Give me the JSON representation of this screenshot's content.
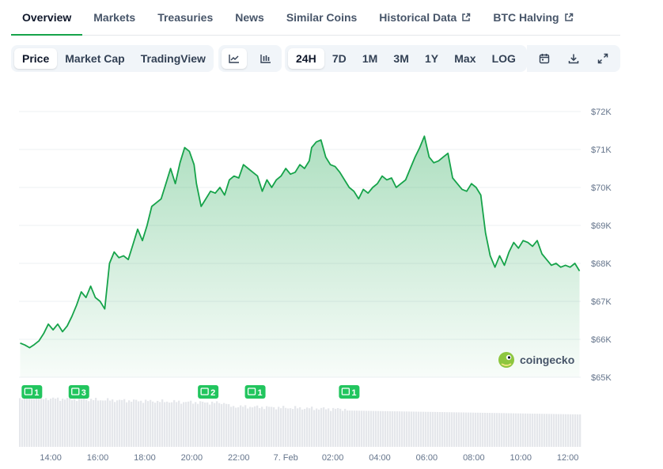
{
  "tabs": [
    {
      "label": "Overview",
      "active": true,
      "external": false
    },
    {
      "label": "Markets",
      "active": false,
      "external": false
    },
    {
      "label": "Treasuries",
      "active": false,
      "external": false
    },
    {
      "label": "News",
      "active": false,
      "external": false
    },
    {
      "label": "Similar Coins",
      "active": false,
      "external": false
    },
    {
      "label": "Historical Data",
      "active": false,
      "external": true
    },
    {
      "label": "BTC Halving",
      "active": false,
      "external": true
    }
  ],
  "toolbar": {
    "chart_types": [
      {
        "label": "Price",
        "active": true
      },
      {
        "label": "Market Cap",
        "active": false
      },
      {
        "label": "TradingView",
        "active": false
      }
    ],
    "view_icons": [
      {
        "icon": "line-chart-icon",
        "active": true
      },
      {
        "icon": "candlestick-chart-icon",
        "active": false
      }
    ],
    "ranges": [
      {
        "label": "24H",
        "active": true
      },
      {
        "label": "7D",
        "active": false
      },
      {
        "label": "1M",
        "active": false
      },
      {
        "label": "3M",
        "active": false
      },
      {
        "label": "1Y",
        "active": false
      },
      {
        "label": "Max",
        "active": false
      },
      {
        "label": "LOG",
        "active": false
      }
    ],
    "tool_icons": [
      "calendar-icon",
      "download-icon",
      "expand-icon"
    ]
  },
  "watermark": {
    "text": "coingecko"
  },
  "colors": {
    "accent": "#16a34a",
    "line": "#16a34a",
    "volume": "#e5e7eb",
    "marker": "#22c55e"
  },
  "chart_data": {
    "type": "area",
    "title": "",
    "xlabel": "",
    "ylabel": "",
    "grid": true,
    "ylim": [
      65000,
      72000
    ],
    "y_ticks": [
      {
        "value": 72000,
        "label": "$72K"
      },
      {
        "value": 71000,
        "label": "$71K"
      },
      {
        "value": 70000,
        "label": "$70K"
      },
      {
        "value": 69000,
        "label": "$69K"
      },
      {
        "value": 68000,
        "label": "$68K"
      },
      {
        "value": 67000,
        "label": "$67K"
      },
      {
        "value": 66000,
        "label": "$66K"
      },
      {
        "value": 65000,
        "label": "$65K"
      }
    ],
    "xlim": [
      12.65,
      36.55
    ],
    "x_ticks": [
      {
        "value": 14,
        "label": "14:00"
      },
      {
        "value": 16,
        "label": "16:00"
      },
      {
        "value": 18,
        "label": "18:00"
      },
      {
        "value": 20,
        "label": "20:00"
      },
      {
        "value": 22,
        "label": "22:00"
      },
      {
        "value": 24,
        "label": "7. Feb"
      },
      {
        "value": 26,
        "label": "02:00"
      },
      {
        "value": 28,
        "label": "04:00"
      },
      {
        "value": 30,
        "label": "06:00"
      },
      {
        "value": 32,
        "label": "08:00"
      },
      {
        "value": 34,
        "label": "10:00"
      },
      {
        "value": 36,
        "label": "12:00"
      }
    ],
    "series": [
      {
        "values": [
          [
            12.7,
            65900
          ],
          [
            12.9,
            65850
          ],
          [
            13.1,
            65780
          ],
          [
            13.3,
            65860
          ],
          [
            13.5,
            65960
          ],
          [
            13.7,
            66150
          ],
          [
            13.9,
            66400
          ],
          [
            14.1,
            66250
          ],
          [
            14.3,
            66400
          ],
          [
            14.5,
            66200
          ],
          [
            14.7,
            66350
          ],
          [
            14.9,
            66600
          ],
          [
            15.1,
            66900
          ],
          [
            15.3,
            67250
          ],
          [
            15.5,
            67100
          ],
          [
            15.7,
            67400
          ],
          [
            15.9,
            67100
          ],
          [
            16.1,
            67000
          ],
          [
            16.3,
            66800
          ],
          [
            16.5,
            68000
          ],
          [
            16.7,
            68300
          ],
          [
            16.9,
            68150
          ],
          [
            17.1,
            68200
          ],
          [
            17.3,
            68100
          ],
          [
            17.5,
            68500
          ],
          [
            17.7,
            68900
          ],
          [
            17.9,
            68600
          ],
          [
            18.1,
            69000
          ],
          [
            18.3,
            69500
          ],
          [
            18.5,
            69600
          ],
          [
            18.7,
            69700
          ],
          [
            18.9,
            70100
          ],
          [
            19.1,
            70500
          ],
          [
            19.3,
            70100
          ],
          [
            19.5,
            70650
          ],
          [
            19.7,
            71050
          ],
          [
            19.9,
            70950
          ],
          [
            20.1,
            70600
          ],
          [
            20.2,
            70100
          ],
          [
            20.4,
            69500
          ],
          [
            20.6,
            69700
          ],
          [
            20.8,
            69900
          ],
          [
            21.0,
            69850
          ],
          [
            21.2,
            70000
          ],
          [
            21.4,
            69800
          ],
          [
            21.6,
            70200
          ],
          [
            21.8,
            70300
          ],
          [
            22.0,
            70250
          ],
          [
            22.2,
            70600
          ],
          [
            22.4,
            70500
          ],
          [
            22.6,
            70400
          ],
          [
            22.8,
            70300
          ],
          [
            23.0,
            69900
          ],
          [
            23.2,
            70200
          ],
          [
            23.4,
            70000
          ],
          [
            23.6,
            70200
          ],
          [
            23.8,
            70300
          ],
          [
            24.0,
            70500
          ],
          [
            24.2,
            70350
          ],
          [
            24.4,
            70400
          ],
          [
            24.6,
            70600
          ],
          [
            24.8,
            70500
          ],
          [
            25.0,
            70700
          ],
          [
            25.1,
            71050
          ],
          [
            25.3,
            71200
          ],
          [
            25.5,
            71250
          ],
          [
            25.7,
            70800
          ],
          [
            25.9,
            70600
          ],
          [
            26.1,
            70550
          ],
          [
            26.3,
            70400
          ],
          [
            26.5,
            70200
          ],
          [
            26.7,
            70000
          ],
          [
            26.9,
            69900
          ],
          [
            27.1,
            69700
          ],
          [
            27.3,
            69950
          ],
          [
            27.5,
            69850
          ],
          [
            27.7,
            70000
          ],
          [
            27.9,
            70100
          ],
          [
            28.1,
            70300
          ],
          [
            28.3,
            70200
          ],
          [
            28.5,
            70250
          ],
          [
            28.7,
            70000
          ],
          [
            28.9,
            70100
          ],
          [
            29.1,
            70200
          ],
          [
            29.3,
            70500
          ],
          [
            29.5,
            70800
          ],
          [
            29.7,
            71050
          ],
          [
            29.9,
            71350
          ],
          [
            30.1,
            70800
          ],
          [
            30.3,
            70650
          ],
          [
            30.5,
            70700
          ],
          [
            30.7,
            70800
          ],
          [
            30.9,
            70900
          ],
          [
            31.1,
            70250
          ],
          [
            31.3,
            70100
          ],
          [
            31.5,
            69950
          ],
          [
            31.7,
            69900
          ],
          [
            31.9,
            70100
          ],
          [
            32.1,
            70000
          ],
          [
            32.3,
            69800
          ],
          [
            32.5,
            68800
          ],
          [
            32.7,
            68200
          ],
          [
            32.9,
            67900
          ],
          [
            33.1,
            68200
          ],
          [
            33.3,
            67950
          ],
          [
            33.5,
            68300
          ],
          [
            33.7,
            68550
          ],
          [
            33.9,
            68400
          ],
          [
            34.1,
            68600
          ],
          [
            34.3,
            68550
          ],
          [
            34.5,
            68450
          ],
          [
            34.7,
            68600
          ],
          [
            34.9,
            68250
          ],
          [
            35.1,
            68100
          ],
          [
            35.3,
            67950
          ],
          [
            35.5,
            68000
          ],
          [
            35.7,
            67900
          ],
          [
            35.9,
            67950
          ],
          [
            36.1,
            67900
          ],
          [
            36.3,
            68000
          ],
          [
            36.5,
            67800
          ]
        ]
      }
    ],
    "volume_markers": [
      {
        "x": 13.2,
        "label": "1"
      },
      {
        "x": 15.2,
        "label": "3"
      },
      {
        "x": 20.7,
        "label": "2"
      },
      {
        "x": 22.7,
        "label": "1"
      },
      {
        "x": 26.7,
        "label": "1"
      }
    ]
  }
}
